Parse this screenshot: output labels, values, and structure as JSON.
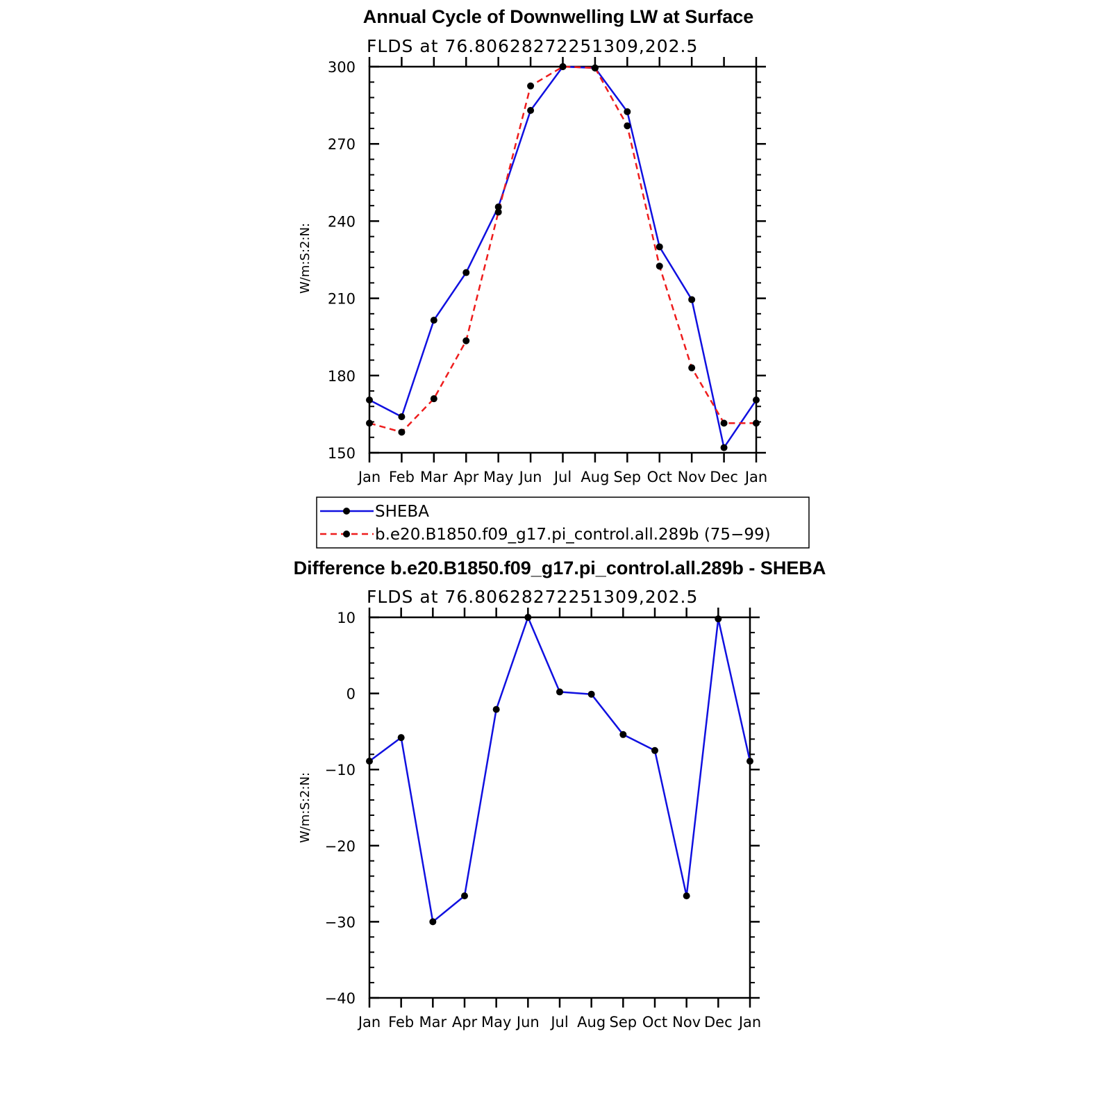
{
  "chart_data": [
    {
      "type": "line",
      "title": "Annual Cycle of Downwelling LW at Surface",
      "subtitle": "FLDS at 76.80628272251309,202.5",
      "ylabel": "W/m:S:2:N:",
      "xlabel": "",
      "categories": [
        "Jan",
        "Feb",
        "Mar",
        "Apr",
        "May",
        "Jun",
        "Jul",
        "Aug",
        "Sep",
        "Oct",
        "Nov",
        "Dec",
        "Jan"
      ],
      "ylim": [
        150,
        300
      ],
      "yticks": [
        150,
        180,
        210,
        240,
        270,
        300
      ],
      "grid": false,
      "legend_position": "below",
      "series": [
        {
          "name": "SHEBA",
          "color": "#1010e0",
          "dash": "solid",
          "marker": "dot",
          "values": [
            170.5,
            164,
            201.5,
            220,
            245.5,
            283,
            300,
            299.5,
            282.5,
            230,
            209.5,
            152,
            170.5
          ]
        },
        {
          "name": "b.e20.B1850.f09_g17.pi_control.all.289b (75−99)",
          "color": "#ee1c1c",
          "dash": "dashed",
          "marker": "dot",
          "values": [
            161.5,
            158,
            171,
            193.5,
            243.5,
            292.5,
            300,
            299.5,
            277,
            222.5,
            183,
            161.5,
            161.5
          ]
        }
      ]
    },
    {
      "type": "line",
      "title": "Difference b.e20.B1850.f09_g17.pi_control.all.289b - SHEBA",
      "subtitle": "FLDS at 76.80628272251309,202.5",
      "ylabel": "W/m:S:2:N:",
      "xlabel": "",
      "categories": [
        "Jan",
        "Feb",
        "Mar",
        "Apr",
        "May",
        "Jun",
        "Jul",
        "Aug",
        "Sep",
        "Oct",
        "Nov",
        "Dec",
        "Jan"
      ],
      "ylim": [
        -40,
        10
      ],
      "yticks": [
        -40,
        -30,
        -20,
        -10,
        0,
        10
      ],
      "ytick_labels": [
        "−40",
        "−30",
        "−20",
        "−10",
        "0",
        "10"
      ],
      "grid": false,
      "series": [
        {
          "color": "#1010e0",
          "dash": "solid",
          "marker": "dot",
          "values": [
            -8.9,
            -5.8,
            -30,
            -26.6,
            -2.1,
            10,
            0.2,
            -0.1,
            -5.4,
            -7.5,
            -26.6,
            9.8,
            -8.9
          ]
        }
      ]
    }
  ]
}
